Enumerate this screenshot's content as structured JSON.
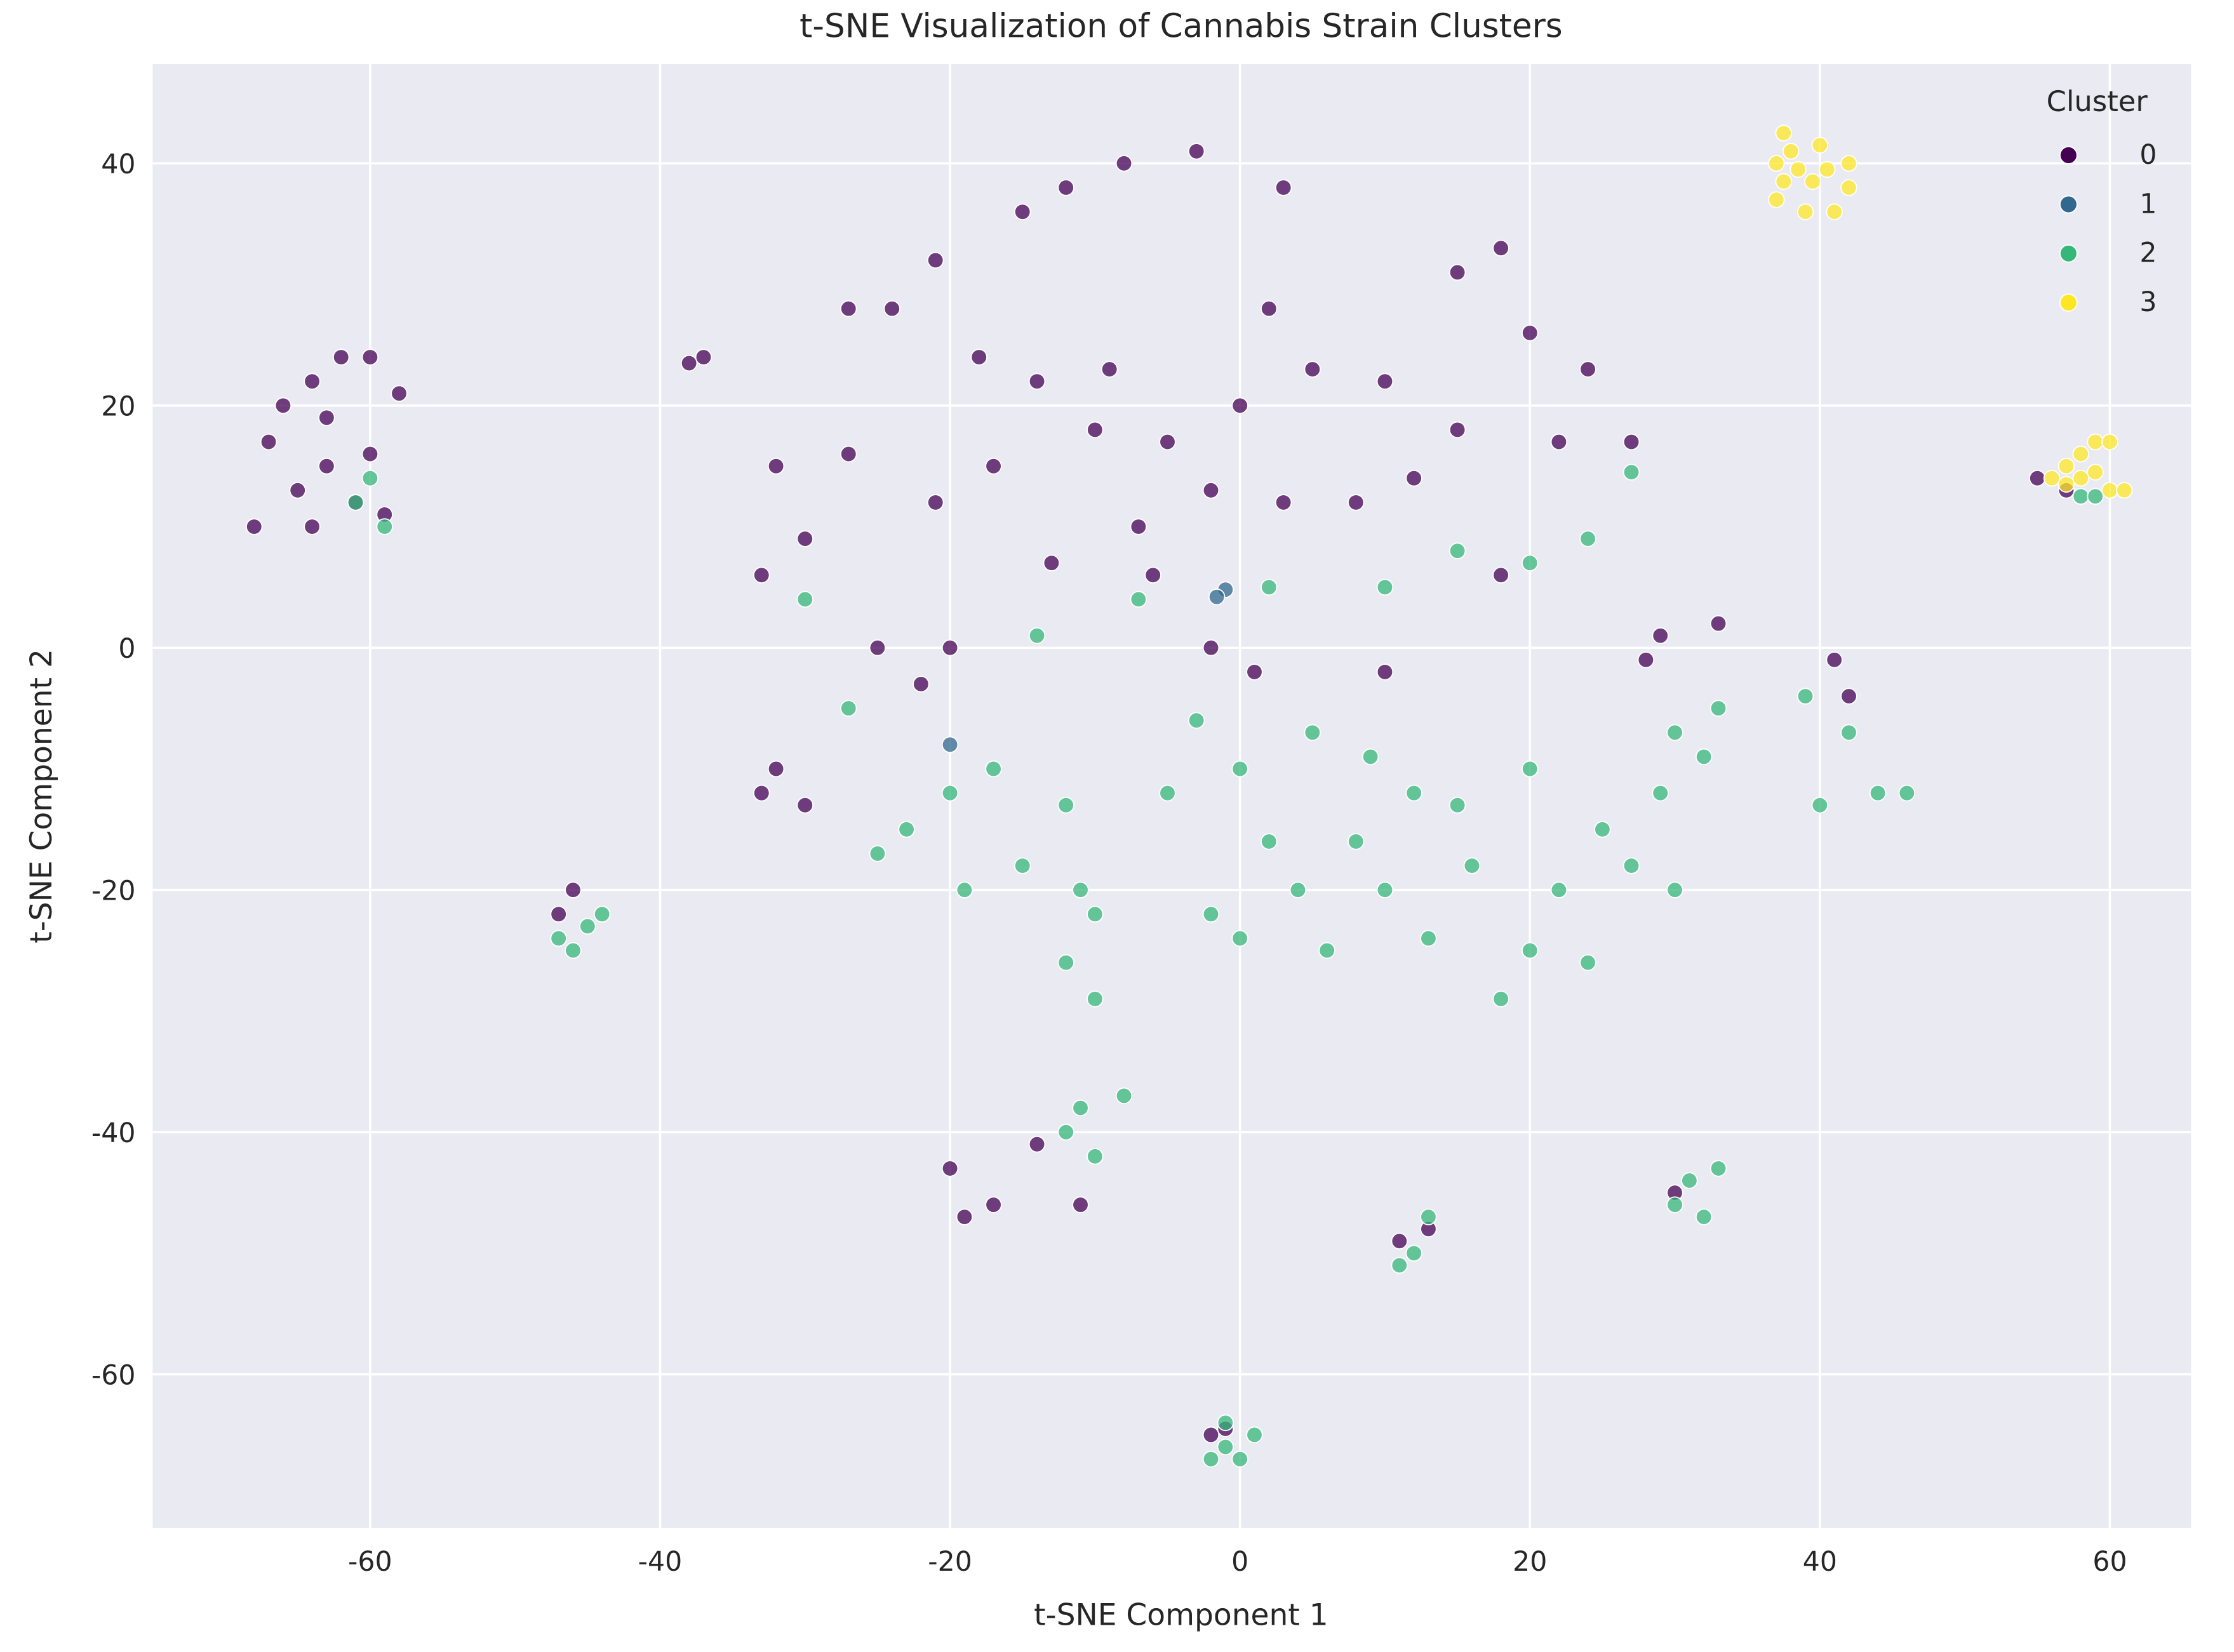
{
  "chart_data": {
    "type": "scatter",
    "title": "t-SNE Visualization of Cannabis Strain Clusters",
    "x_label": "t-SNE Component 1",
    "y_label": "t-SNE Component 2",
    "xlim": [
      -75,
      65.6
    ],
    "ylim": [
      -72.7,
      48.2
    ],
    "xticks": [
      -60,
      -40,
      -20,
      0,
      20,
      40,
      60
    ],
    "yticks": [
      -60,
      -40,
      -20,
      0,
      20,
      40
    ],
    "grid": true,
    "legend_title": "Cluster",
    "legend_position": "upper right",
    "series": [
      {
        "name": "0",
        "color": "#440154",
        "x": [
          -68,
          -66,
          -64,
          -62,
          -60,
          -63,
          -65,
          -61,
          -60,
          -58,
          -67,
          -63,
          -59,
          -64,
          -37,
          -38,
          -8,
          -3,
          3,
          -15,
          -12,
          -21,
          -27,
          -24,
          -18,
          -14,
          -10,
          -5,
          0,
          2,
          5,
          10,
          15,
          18,
          20,
          24,
          27,
          22,
          15,
          12,
          8,
          3,
          -2,
          -7,
          -13,
          -17,
          -21,
          -27,
          -32,
          -33,
          -30,
          -25,
          -22,
          -20,
          -32,
          -33,
          -30,
          -2,
          1,
          10,
          29,
          33,
          28,
          41,
          42,
          55,
          57,
          -46,
          -47,
          -20,
          -17,
          -14,
          -11,
          -19,
          11,
          13,
          30,
          -2,
          -1,
          18,
          -6,
          -9
        ],
        "y": [
          10,
          20,
          22,
          24,
          24,
          15,
          13,
          12,
          16,
          21,
          17,
          19,
          11,
          10,
          24,
          23.5,
          40,
          41,
          38,
          36,
          38,
          32,
          28,
          28,
          24,
          22,
          18,
          17,
          20,
          28,
          23,
          22,
          31,
          33,
          26,
          23,
          17,
          17,
          18,
          14,
          12,
          12,
          13,
          10,
          7,
          15,
          12,
          16,
          15,
          6,
          9,
          0,
          -3,
          0,
          -10,
          -12,
          -13,
          0,
          -2,
          -2,
          1,
          2,
          -1,
          -1,
          -4,
          14,
          13,
          -20,
          -22,
          -43,
          -46,
          -41,
          -46,
          -47,
          -49,
          -48,
          -45,
          -65,
          -64.5,
          6,
          6,
          23
        ]
      },
      {
        "name": "1",
        "color": "#31688e",
        "x": [
          -1,
          -1.6,
          -20
        ],
        "y": [
          4.8,
          4.2,
          -8
        ]
      },
      {
        "name": "2",
        "color": "#35b779",
        "x": [
          -61,
          -59,
          -60,
          -30,
          -27,
          -25,
          -23,
          -20,
          -19,
          -15,
          -12,
          -10,
          -12,
          -10,
          -5,
          -3,
          0,
          2,
          -2,
          0,
          4,
          6,
          8,
          10,
          12,
          13,
          16,
          18,
          20,
          22,
          24,
          25,
          27,
          29,
          30,
          32,
          33,
          30,
          20,
          15,
          9,
          5,
          10,
          15,
          20,
          24,
          2,
          -7,
          -14,
          -11,
          -17,
          39,
          40,
          42,
          44,
          46,
          -47,
          -45,
          -46,
          -44,
          -11,
          -8,
          -10,
          -12,
          12,
          13,
          11,
          31,
          33,
          32,
          30,
          -1,
          0,
          -2,
          1,
          -1,
          58,
          59,
          27
        ],
        "y": [
          12,
          10,
          14,
          4,
          -5,
          -17,
          -15,
          -12,
          -20,
          -18,
          -13,
          -22,
          -26,
          -29,
          -12,
          -6,
          -10,
          -16,
          -22,
          -24,
          -20,
          -25,
          -16,
          -20,
          -12,
          -24,
          -18,
          -29,
          -25,
          -20,
          -26,
          -15,
          -18,
          -12,
          -20,
          -9,
          -5,
          -7,
          -10,
          -13,
          -9,
          -7,
          5,
          8,
          7,
          9,
          5,
          4,
          1,
          -20,
          -10,
          -4,
          -13,
          -7,
          -12,
          -12,
          -24,
          -23,
          -25,
          -22,
          -38,
          -37,
          -42,
          -40,
          -50,
          -47,
          -51,
          -44,
          -43,
          -47,
          -46,
          -66,
          -67,
          -67,
          -65,
          -64,
          12.5,
          12.5,
          14.5
        ]
      },
      {
        "name": "3",
        "color": "#fde725",
        "x": [
          37,
          38,
          40,
          42,
          42,
          41,
          39,
          37,
          37.5,
          39.5,
          40.5,
          38.5,
          37.5,
          56,
          57,
          58,
          59,
          60,
          60,
          57,
          58,
          59,
          61
        ],
        "y": [
          40,
          41,
          41.5,
          40,
          38,
          36,
          36,
          37,
          38.5,
          38.5,
          39.5,
          39.5,
          42.5,
          14,
          15,
          16,
          17,
          17,
          13,
          13.5,
          14,
          14.5,
          13
        ]
      }
    ]
  }
}
